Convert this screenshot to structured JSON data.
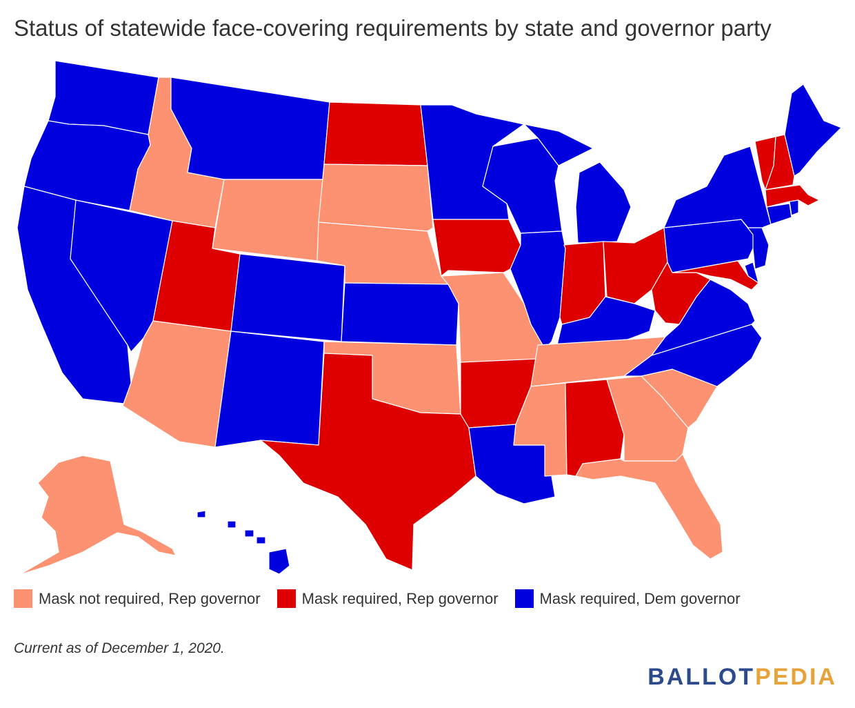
{
  "title": "Status of statewide face-covering requirements by state and governor party",
  "colors": {
    "not_required_rep": "#fc9272",
    "required_rep": "#de0000",
    "required_dem": "#0000de"
  },
  "legend": [
    {
      "label": "Mask not required, Rep governor",
      "category": "not_required_rep"
    },
    {
      "label": "Mask required, Rep governor",
      "category": "required_rep"
    },
    {
      "label": "Mask required, Dem governor",
      "category": "required_dem"
    }
  ],
  "states": {
    "WA": "required_dem",
    "OR": "required_dem",
    "CA": "required_dem",
    "NV": "required_dem",
    "ID": "not_required_rep",
    "MT": "required_dem",
    "WY": "not_required_rep",
    "UT": "required_rep",
    "AZ": "not_required_rep",
    "CO": "required_dem",
    "NM": "required_dem",
    "ND": "required_rep",
    "SD": "not_required_rep",
    "NE": "not_required_rep",
    "KS": "required_dem",
    "OK": "not_required_rep",
    "TX": "required_rep",
    "MN": "required_dem",
    "IA": "required_rep",
    "MO": "not_required_rep",
    "AR": "required_rep",
    "LA": "required_dem",
    "WI": "required_dem",
    "IL": "required_dem",
    "MI": "required_dem",
    "IN": "required_rep",
    "OH": "required_rep",
    "KY": "required_dem",
    "TN": "not_required_rep",
    "MS": "not_required_rep",
    "AL": "required_rep",
    "GA": "not_required_rep",
    "FL": "not_required_rep",
    "SC": "not_required_rep",
    "NC": "required_dem",
    "VA": "required_dem",
    "WV": "required_rep",
    "MD": "required_rep",
    "DE": "required_dem",
    "NJ": "required_dem",
    "PA": "required_dem",
    "NY": "required_dem",
    "CT": "required_dem",
    "RI": "required_dem",
    "MA": "required_rep",
    "VT": "required_rep",
    "NH": "required_rep",
    "ME": "required_dem",
    "AK": "not_required_rep",
    "HI": "required_dem"
  },
  "note": "Current as of December 1, 2020.",
  "logo": {
    "part1": "BALLOT",
    "part2": "PEDIA",
    "color1": "#2c4a8c",
    "color2": "#e8a23a"
  }
}
